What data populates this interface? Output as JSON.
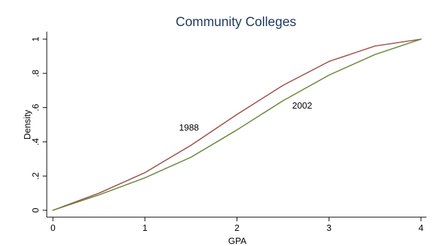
{
  "chart_data": {
    "type": "line",
    "title": "Community Colleges",
    "xlabel": "GPA",
    "ylabel": "Density",
    "xlim": [
      0,
      4
    ],
    "ylim": [
      0,
      1
    ],
    "x_ticks": [
      0,
      1,
      2,
      3,
      4
    ],
    "x_tick_labels": [
      "0",
      "1",
      "2",
      "3",
      "4"
    ],
    "y_ticks": [
      0,
      0.2,
      0.4,
      0.6,
      0.8,
      1
    ],
    "y_tick_labels": [
      "0",
      ".2",
      ".4",
      ".6",
      ".8",
      "1"
    ],
    "grid": false,
    "legend": "none",
    "series": [
      {
        "name": "1988",
        "color": "#a0524f",
        "x": [
          0,
          0.5,
          1,
          1.5,
          2,
          2.5,
          3,
          3.5,
          4
        ],
        "values": [
          0.0,
          0.1,
          0.22,
          0.38,
          0.56,
          0.73,
          0.87,
          0.96,
          1.0
        ]
      },
      {
        "name": "2002",
        "color": "#6a8a3e",
        "x": [
          0,
          0.5,
          1,
          1.5,
          2,
          2.5,
          3,
          3.5,
          4
        ],
        "values": [
          0.0,
          0.09,
          0.19,
          0.31,
          0.47,
          0.64,
          0.79,
          0.91,
          1.0
        ]
      }
    ],
    "annotations": [
      {
        "text": "1988",
        "x": 1.37,
        "y": 0.465
      },
      {
        "text": "2002",
        "x": 2.6,
        "y": 0.595
      }
    ],
    "title_color": "#1f3a5f"
  }
}
